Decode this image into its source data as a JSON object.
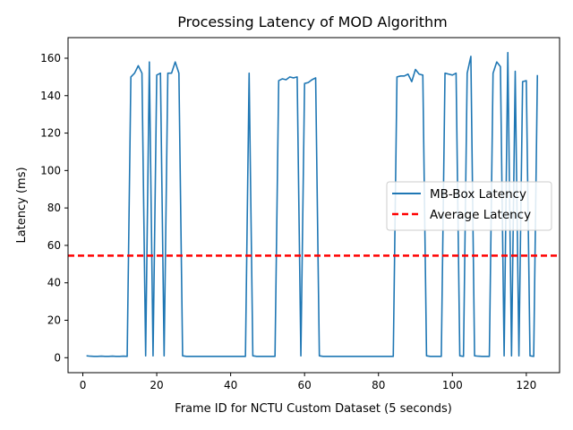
{
  "chart_data": {
    "type": "line",
    "title": "Processing Latency of MOD Algorithm",
    "xlabel": "Frame ID for NCTU Custom Dataset (5 seconds)",
    "ylabel": "Latency (ms)",
    "xlim": [
      -4,
      129
    ],
    "ylim": [
      -8,
      171
    ],
    "xticks": [
      0,
      20,
      40,
      60,
      80,
      100,
      120
    ],
    "yticks": [
      0,
      20,
      40,
      60,
      80,
      100,
      120,
      140,
      160
    ],
    "grid": false,
    "legend_position": "center-right",
    "series": [
      {
        "name": "MB-Box Latency",
        "color": "#1f77b4",
        "style": "solid",
        "x": [
          1,
          2,
          3,
          4,
          5,
          6,
          7,
          8,
          9,
          10,
          11,
          12,
          13,
          14,
          15,
          16,
          17,
          18,
          19,
          20,
          21,
          22,
          23,
          24,
          25,
          26,
          27,
          28,
          29,
          30,
          31,
          32,
          33,
          34,
          35,
          36,
          37,
          38,
          39,
          40,
          41,
          42,
          43,
          44,
          45,
          46,
          47,
          48,
          49,
          50,
          51,
          52,
          53,
          54,
          55,
          56,
          57,
          58,
          59,
          60,
          61,
          62,
          63,
          64,
          65,
          66,
          67,
          68,
          69,
          70,
          71,
          72,
          73,
          74,
          75,
          76,
          77,
          78,
          79,
          80,
          81,
          82,
          83,
          84,
          85,
          86,
          87,
          88,
          89,
          90,
          91,
          92,
          93,
          94,
          95,
          96,
          97,
          98,
          99,
          100,
          101,
          102,
          103,
          104,
          105,
          106,
          107,
          108,
          109,
          110,
          111,
          112,
          113,
          114,
          115,
          116,
          117,
          118,
          119,
          120,
          121,
          122,
          123
        ],
        "values": [
          1,
          0.8,
          0.7,
          0.7,
          0.8,
          0.7,
          0.7,
          0.8,
          0.7,
          0.7,
          0.8,
          0.7,
          150,
          152,
          156,
          152,
          1,
          158,
          1,
          151,
          152,
          1,
          152,
          152,
          158,
          152,
          1,
          0.7,
          0.7,
          0.7,
          0.7,
          0.7,
          0.7,
          0.7,
          0.7,
          0.7,
          0.7,
          0.7,
          0.7,
          0.7,
          0.7,
          0.7,
          0.7,
          0.7,
          152,
          1,
          0.7,
          0.7,
          0.7,
          0.7,
          0.7,
          0.7,
          148,
          149,
          148.5,
          150,
          149.5,
          150,
          1,
          146.5,
          147,
          148.5,
          149.5,
          1,
          0.7,
          0.7,
          0.7,
          0.7,
          0.7,
          0.7,
          0.7,
          0.7,
          0.7,
          0.7,
          0.7,
          0.7,
          0.7,
          0.7,
          0.7,
          0.7,
          0.7,
          0.7,
          0.7,
          0.7,
          150,
          150.5,
          150.5,
          151.5,
          147.5,
          154,
          151.5,
          151,
          1,
          0.7,
          0.7,
          0.7,
          0.7,
          152,
          151.5,
          151,
          152,
          1,
          0.7,
          152,
          161,
          1,
          0.8,
          0.7,
          0.7,
          0.7,
          152,
          158,
          155.5,
          1,
          163,
          1,
          153,
          1,
          147.5,
          148,
          1,
          0.7,
          151
        ]
      },
      {
        "name": "Average Latency",
        "color": "#ff0000",
        "style": "dashed",
        "constant": 54.5
      }
    ]
  }
}
